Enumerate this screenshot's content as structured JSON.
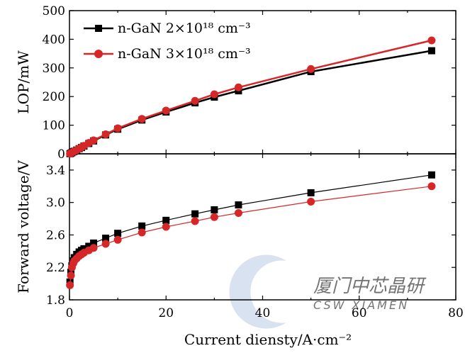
{
  "chart_data": [
    {
      "type": "line",
      "panel": "top",
      "ylabel": "LOP/mW",
      "xlim": [
        0,
        80
      ],
      "ylim": [
        0,
        500
      ],
      "yticks": [
        0,
        100,
        200,
        300,
        400,
        500
      ],
      "legend_position": "top-left",
      "series": [
        {
          "name": "n-GaN 2×10¹⁸ cm⁻³",
          "color": "#000000",
          "marker": "square",
          "x": [
            0.1,
            0.3,
            0.5,
            0.8,
            1,
            1.5,
            2,
            2.5,
            3,
            4,
            5,
            7.5,
            10,
            15,
            20,
            26,
            30,
            35,
            50,
            75
          ],
          "y": [
            0.5,
            2,
            4,
            7,
            9,
            13,
            18,
            22,
            27,
            36,
            45,
            66,
            86,
            118,
            146,
            178,
            198,
            220,
            287,
            360
          ]
        },
        {
          "name": "n-GaN 3×10¹⁸ cm⁻³",
          "color": "#d62728",
          "marker": "circle",
          "x": [
            0.1,
            0.3,
            0.5,
            0.8,
            1,
            1.5,
            2,
            2.5,
            3,
            4,
            5,
            7.5,
            10,
            15,
            20,
            26,
            30,
            35,
            50,
            75
          ],
          "y": [
            0.5,
            2,
            4,
            7,
            9,
            13,
            18,
            23,
            28,
            38,
            47,
            68,
            89,
            122,
            151,
            185,
            208,
            232,
            296,
            396
          ]
        }
      ]
    },
    {
      "type": "line",
      "panel": "bottom",
      "xlabel": "Current diensty/A·cm⁻²",
      "ylabel": "Forward voltage/V",
      "xlim": [
        0,
        80
      ],
      "ylim": [
        1.8,
        3.6
      ],
      "xticks": [
        0,
        20,
        40,
        60,
        80
      ],
      "yticks": [
        1.8,
        2.2,
        2.6,
        3.0,
        3.4
      ],
      "series": [
        {
          "name": "n-GaN 2×10¹⁸ cm⁻³",
          "color": "#000000",
          "marker": "square",
          "x": [
            0.1,
            0.3,
            0.5,
            0.8,
            1,
            1.5,
            2,
            2.5,
            3,
            4,
            5,
            7.5,
            10,
            15,
            20,
            26,
            30,
            35,
            50,
            75
          ],
          "y": [
            2.02,
            2.14,
            2.22,
            2.28,
            2.32,
            2.36,
            2.39,
            2.41,
            2.43,
            2.46,
            2.5,
            2.56,
            2.62,
            2.71,
            2.78,
            2.86,
            2.91,
            2.97,
            3.12,
            3.34
          ]
        },
        {
          "name": "n-GaN 3×10¹⁸ cm⁻³",
          "color": "#d62728",
          "marker": "circle",
          "x": [
            0.1,
            0.3,
            0.5,
            0.8,
            1,
            1.5,
            2,
            2.5,
            3,
            4,
            5,
            7.5,
            10,
            15,
            20,
            26,
            30,
            35,
            50,
            75
          ],
          "y": [
            1.98,
            2.1,
            2.2,
            2.25,
            2.28,
            2.31,
            2.34,
            2.36,
            2.38,
            2.41,
            2.44,
            2.49,
            2.54,
            2.63,
            2.7,
            2.77,
            2.82,
            2.87,
            3.01,
            3.2
          ]
        }
      ]
    }
  ],
  "watermark": {
    "text_cn": "厦门中芯晶研",
    "text_en": "CSW XIAMEN",
    "color": "#9fb8d8"
  }
}
